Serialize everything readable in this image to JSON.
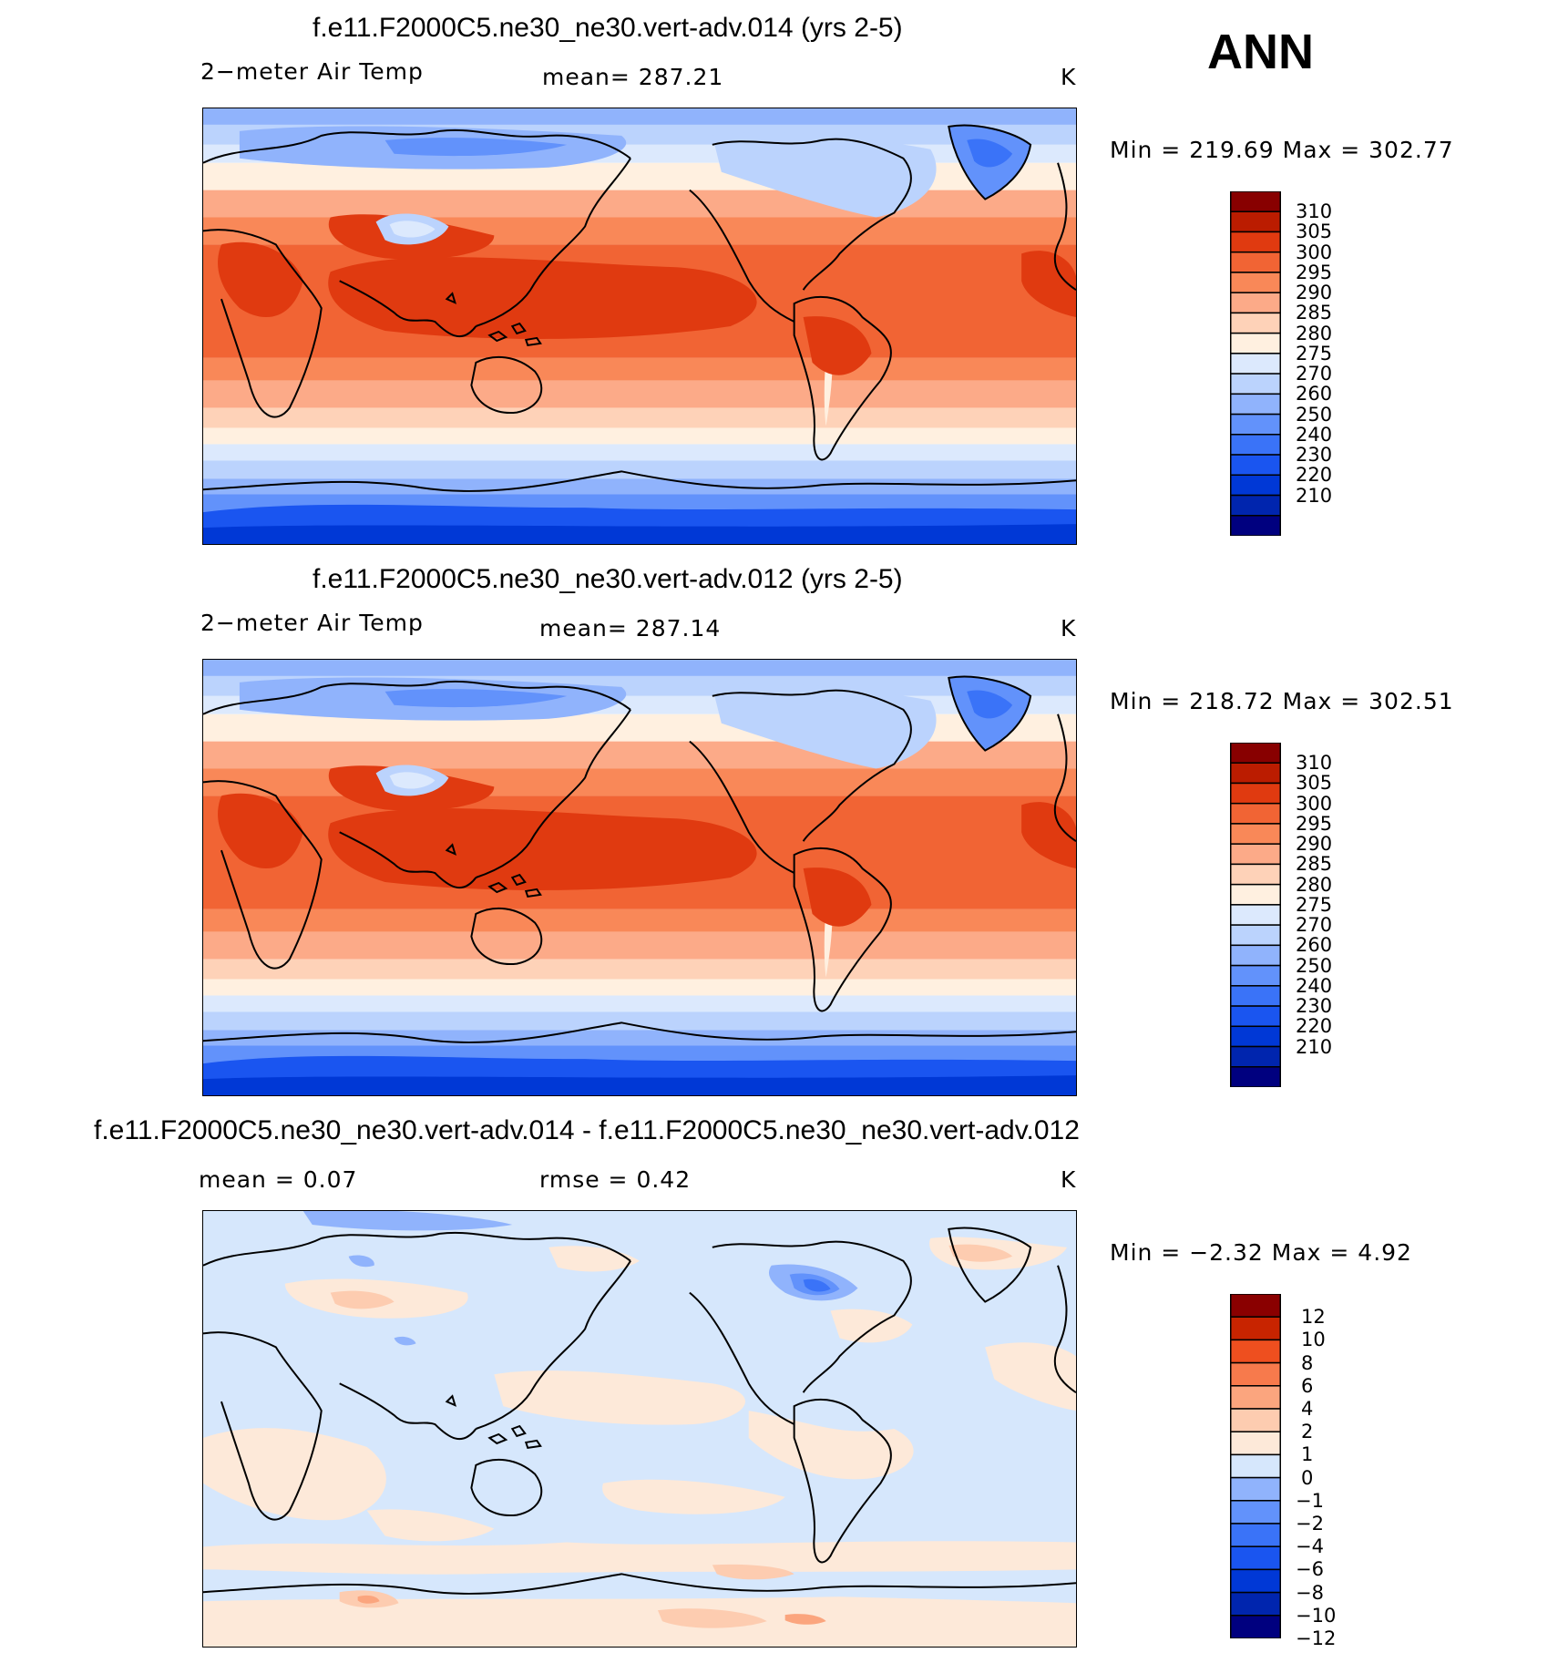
{
  "season": "ANN",
  "colors": {
    "temp": [
      "#00007f",
      "#0025ae",
      "#0038d6",
      "#1a55f0",
      "#3a73f8",
      "#6292fb",
      "#90b3fc",
      "#bbd3fd",
      "#dce9fd",
      "#fff0e0",
      "#fed2b8",
      "#fcaa88",
      "#f98858",
      "#f16434",
      "#e03a10",
      "#bb1c00",
      "#880000"
    ],
    "diff": [
      "#00007f",
      "#0025ae",
      "#0038d6",
      "#1a55f0",
      "#3a73f8",
      "#6292fb",
      "#90b3fc",
      "#d6e7fc",
      "#fde9d9",
      "#fdccb0",
      "#fba57e",
      "#f77a4c",
      "#ee4f1f",
      "#c82400",
      "#8a0000"
    ]
  },
  "panels": [
    {
      "title": "f.e11.F2000C5.ne30_ne30.vert-adv.014 (yrs 2-5)",
      "left_label": "2−meter Air Temp",
      "center_label": "mean=  287.21",
      "units": "K",
      "minmax": "Min  =  219.69  Max  =  302.77",
      "colorbar_labels": [
        "310",
        "305",
        "300",
        "295",
        "290",
        "285",
        "280",
        "275",
        "270",
        "260",
        "250",
        "240",
        "230",
        "220",
        "210"
      ]
    },
    {
      "title": "f.e11.F2000C5.ne30_ne30.vert-adv.012 (yrs 2-5)",
      "left_label": "2−meter Air Temp",
      "center_label": "mean=  287.14",
      "units": "K",
      "minmax": "Min  =  218.72  Max  =  302.51",
      "colorbar_labels": [
        "310",
        "305",
        "300",
        "295",
        "290",
        "285",
        "280",
        "275",
        "270",
        "260",
        "250",
        "240",
        "230",
        "220",
        "210"
      ]
    },
    {
      "title": "f.e11.F2000C5.ne30_ne30.vert-adv.014 - f.e11.F2000C5.ne30_ne30.vert-adv.012",
      "left_label": "mean  =      0.07",
      "center_label": "rmse  =      0.42",
      "units": "K",
      "minmax": "Min  =    −2.32  Max  =      4.92",
      "colorbar_labels": [
        "12",
        "10",
        "8",
        "6",
        "4",
        "2",
        "1",
        "0",
        "−1",
        "−2",
        "−4",
        "−6",
        "−8",
        "−10",
        "−12"
      ]
    }
  ],
  "chart_data": [
    {
      "type": "heatmap",
      "title": "f.e11.F2000C5.ne30_ne30.vert-adv.014 (yrs 2-5)",
      "variable": "2−meter Air Temp",
      "units": "K",
      "mean": 287.21,
      "min": 219.69,
      "max": 302.77,
      "contour_levels": [
        210,
        220,
        230,
        240,
        250,
        260,
        270,
        275,
        280,
        285,
        290,
        295,
        300,
        305,
        310
      ]
    },
    {
      "type": "heatmap",
      "title": "f.e11.F2000C5.ne30_ne30.vert-adv.012 (yrs 2-5)",
      "variable": "2−meter Air Temp",
      "units": "K",
      "mean": 287.14,
      "min": 218.72,
      "max": 302.51,
      "contour_levels": [
        210,
        220,
        230,
        240,
        250,
        260,
        270,
        275,
        280,
        285,
        290,
        295,
        300,
        305,
        310
      ]
    },
    {
      "type": "heatmap",
      "title": "f.e11.F2000C5.ne30_ne30.vert-adv.014 - f.e11.F2000C5.ne30_ne30.vert-adv.012",
      "units": "K",
      "mean": 0.07,
      "rmse": 0.42,
      "min": -2.32,
      "max": 4.92,
      "contour_levels": [
        -12,
        -10,
        -8,
        -6,
        -4,
        -2,
        -1,
        0,
        1,
        2,
        4,
        6,
        8,
        10,
        12
      ]
    }
  ]
}
